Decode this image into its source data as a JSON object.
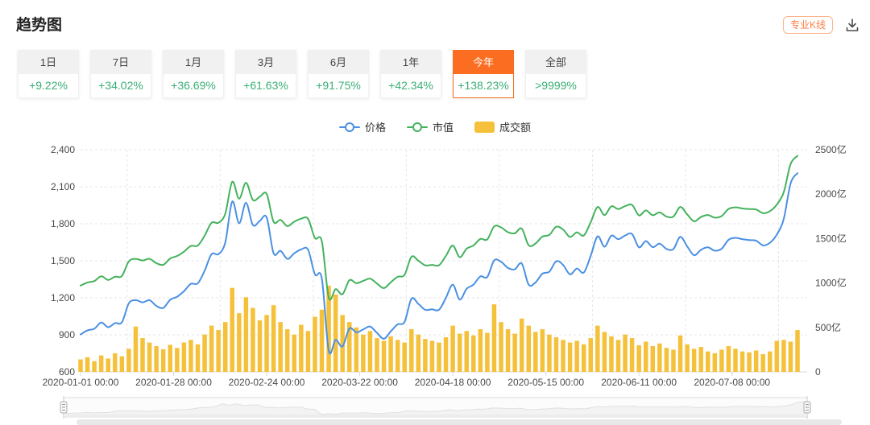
{
  "header": {
    "title": "趋势图",
    "pro_kline_label": "专业K线"
  },
  "colors": {
    "accent_orange": "#fb6d20",
    "percent_green": "#3aaf76",
    "price_blue": "#4a90e2",
    "mcap_green": "#44b25d",
    "volume_yellow": "#f5c13a"
  },
  "tabs": [
    {
      "label": "1日",
      "change": "+9.22%",
      "selected": false
    },
    {
      "label": "7日",
      "change": "+34.02%",
      "selected": false
    },
    {
      "label": "1月",
      "change": "+36.69%",
      "selected": false
    },
    {
      "label": "3月",
      "change": "+61.63%",
      "selected": false
    },
    {
      "label": "6月",
      "change": "+91.75%",
      "selected": false
    },
    {
      "label": "1年",
      "change": "+42.34%",
      "selected": false
    },
    {
      "label": "今年",
      "change": "+138.23%",
      "selected": true
    },
    {
      "label": "全部",
      "change": ">9999%",
      "selected": false
    }
  ],
  "legend": [
    {
      "name": "价格",
      "type": "line",
      "color": "#4a90e2"
    },
    {
      "name": "市值",
      "type": "line",
      "color": "#44b25d"
    },
    {
      "name": "成交额",
      "type": "bar",
      "color": "#f5c13a"
    }
  ],
  "chart_data": {
    "type": "line+bar",
    "title": "趋势图",
    "grid": "dashed",
    "legend_position": "top-center",
    "point_day_interval": 2,
    "x_ticks": [
      {
        "day": 0,
        "label": "2020-01-01 00:00"
      },
      {
        "day": 27,
        "label": "2020-01-28 00:00"
      },
      {
        "day": 54,
        "label": "2020-02-24 00:00"
      },
      {
        "day": 81,
        "label": "2020-03-22 00:00"
      },
      {
        "day": 108,
        "label": "2020-04-18 00:00"
      },
      {
        "day": 135,
        "label": "2020-05-15 00:00"
      },
      {
        "day": 162,
        "label": "2020-06-11 00:00"
      },
      {
        "day": 189,
        "label": "2020-07-08 00:00"
      }
    ],
    "left_axis": {
      "min": 600,
      "max": 2400,
      "tick_labels": [
        "2,400",
        "2,100",
        "1,800",
        "1,500",
        "1,200",
        "900",
        "600"
      ]
    },
    "right_axis": {
      "min": 0,
      "max": 2500,
      "unit": "亿",
      "tick_labels": [
        "2500亿",
        "2000亿",
        "1500亿",
        "1000亿",
        "500亿",
        "0"
      ]
    },
    "series": [
      {
        "name": "价格",
        "type": "line",
        "y_axis": "left",
        "color": "#4a90e2",
        "values": [
          903,
          936,
          950,
          1000,
          962,
          995,
          1002,
          1155,
          1181,
          1163,
          1181,
          1135,
          1118,
          1184,
          1209,
          1254,
          1313,
          1317,
          1420,
          1554,
          1554,
          1650,
          1980,
          1804,
          1970,
          1790,
          1823,
          1851,
          1561,
          1581,
          1515,
          1561,
          1592,
          1590,
          1390,
          1356,
          771,
          859,
          806,
          952,
          920,
          944,
          967,
          916,
          868,
          928,
          985,
          1005,
          1192,
          1151,
          1103,
          1107,
          1103,
          1200,
          1307,
          1186,
          1273,
          1307,
          1374,
          1369,
          1503,
          1492,
          1442,
          1431,
          1478,
          1307,
          1325,
          1396,
          1412,
          1496,
          1466,
          1390,
          1437,
          1405,
          1540,
          1698,
          1614,
          1704,
          1675,
          1705,
          1717,
          1609,
          1660,
          1610,
          1639,
          1596,
          1595,
          1694,
          1617,
          1545,
          1589,
          1609,
          1582,
          1598,
          1670,
          1686,
          1675,
          1668,
          1663,
          1625,
          1646,
          1713,
          1838,
          2127,
          2210
        ]
      },
      {
        "name": "市值",
        "type": "line",
        "y_axis": "right",
        "color": "#44b25d",
        "values": [
          971,
          1006,
          1022,
          1076,
          1035,
          1071,
          1079,
          1244,
          1272,
          1253,
          1272,
          1223,
          1205,
          1276,
          1304,
          1353,
          1417,
          1421,
          1533,
          1678,
          1678,
          1782,
          2139,
          1949,
          2129,
          1935,
          1971,
          2002,
          1689,
          1711,
          1640,
          1690,
          1724,
          1722,
          1506,
          1469,
          836,
          931,
          874,
          1032,
          998,
          1024,
          1049,
          994,
          942,
          1008,
          1070,
          1092,
          1295,
          1251,
          1199,
          1204,
          1200,
          1305,
          1422,
          1291,
          1386,
          1423,
          1496,
          1491,
          1637,
          1626,
          1572,
          1560,
          1612,
          1425,
          1445,
          1523,
          1541,
          1633,
          1601,
          1518,
          1570,
          1535,
          1683,
          1856,
          1765,
          1863,
          1832,
          1865,
          1879,
          1761,
          1817,
          1763,
          1795,
          1748,
          1748,
          1856,
          1772,
          1694,
          1743,
          1765,
          1736,
          1754,
          1833,
          1851,
          1839,
          1832,
          1827,
          1786,
          1809,
          1883,
          2021,
          2339,
          2431
        ]
      },
      {
        "name": "成交额",
        "type": "bar",
        "y_axis": "right",
        "color": "#f5c13a",
        "values": [
          140,
          165,
          120,
          185,
          150,
          210,
          175,
          260,
          510,
          380,
          330,
          290,
          255,
          305,
          270,
          330,
          360,
          310,
          420,
          520,
          470,
          560,
          945,
          660,
          840,
          720,
          580,
          640,
          750,
          560,
          480,
          420,
          530,
          460,
          620,
          700,
          970,
          870,
          640,
          560,
          500,
          420,
          460,
          380,
          350,
          400,
          360,
          330,
          480,
          420,
          370,
          350,
          330,
          390,
          520,
          430,
          460,
          410,
          480,
          440,
          760,
          560,
          480,
          430,
          600,
          520,
          450,
          480,
          420,
          390,
          360,
          330,
          350,
          310,
          380,
          520,
          450,
          400,
          360,
          420,
          380,
          300,
          340,
          290,
          320,
          270,
          250,
          410,
          310,
          260,
          280,
          230,
          210,
          250,
          290,
          260,
          230,
          220,
          240,
          200,
          230,
          350,
          360,
          340,
          470
        ]
      }
    ]
  }
}
